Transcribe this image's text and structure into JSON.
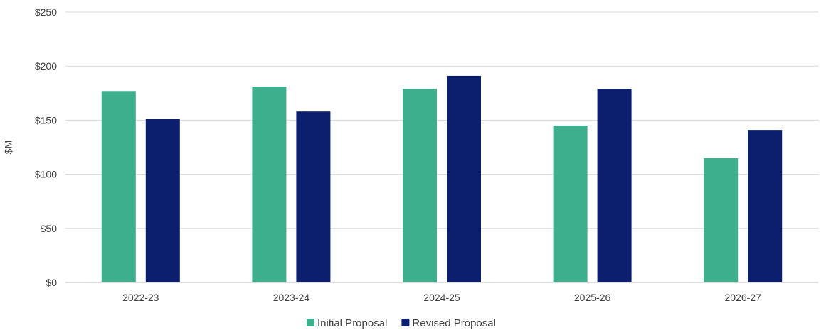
{
  "chart_data": {
    "type": "bar",
    "title": "",
    "xlabel": "",
    "ylabel": "$M",
    "ylim": [
      0,
      250
    ],
    "yticks": [
      0,
      50,
      100,
      150,
      200,
      250
    ],
    "ytick_labels": [
      "$0",
      "$50",
      "$100",
      "$150",
      "$200",
      "$250"
    ],
    "categories": [
      "2022-23",
      "2023-24",
      "2024-25",
      "2025-26",
      "2026-27"
    ],
    "series": [
      {
        "name": "Initial Proposal",
        "color": "#3daf8d",
        "values": [
          177,
          181,
          179,
          145,
          115
        ]
      },
      {
        "name": "Revised Proposal",
        "color": "#0b1f6e",
        "values": [
          151,
          158,
          191,
          179,
          141
        ]
      }
    ],
    "grid": true,
    "legend_position": "bottom-center"
  }
}
